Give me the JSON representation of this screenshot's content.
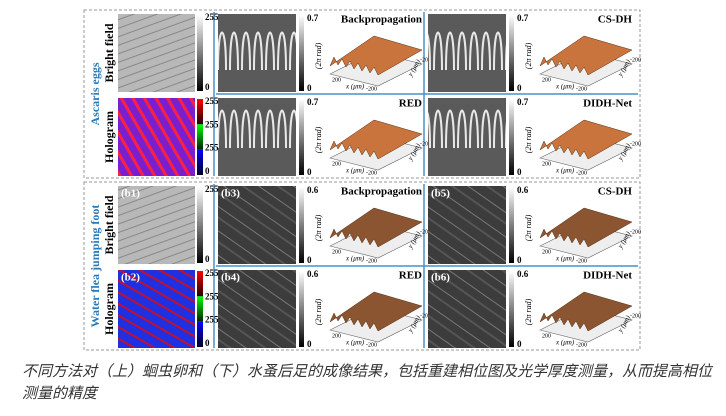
{
  "figure": {
    "groups": [
      {
        "label": "Ascaris eggs",
        "phase_max": 0.7,
        "phase_min": 0,
        "rows": [
          {
            "label": "Bright field",
            "colorbar": [
              255,
              0
            ],
            "methods": [
              {
                "title": "Backpropagation"
              },
              {
                "title": "CS-DH"
              }
            ]
          },
          {
            "label": "Hologram",
            "colorbar": [
              255,
              255,
              255,
              0
            ],
            "methods": [
              {
                "title": "RED"
              },
              {
                "title": "DIDH-Net"
              }
            ]
          }
        ]
      },
      {
        "label": "Water flea jumping foot",
        "phase_max": 0.6,
        "phase_min": 0,
        "rows": [
          {
            "label": "Bright field",
            "tag": "(b1)",
            "colorbar": [
              255,
              0
            ],
            "methods": [
              {
                "title": "Backpropagation",
                "tag": "(b3)"
              },
              {
                "title": "CS-DH",
                "tag": "(b5)"
              }
            ]
          },
          {
            "label": "Hologram",
            "tag": "(b2)",
            "colorbar": [
              255,
              255,
              255,
              0
            ],
            "methods": [
              {
                "title": "RED",
                "tag": "(b4)"
              },
              {
                "title": "DIDH-Net",
                "tag": "(b6)"
              }
            ]
          }
        ]
      }
    ],
    "surface_axes": {
      "unit": "(2π rad)",
      "x_label": "x (μm)",
      "y_label": "y (μm)",
      "ticks": [
        200,
        0,
        -200
      ]
    }
  },
  "caption": "不同方法对（上）蛔虫卵和（下）水蚤后足的成像结果，包括重建相位图及光学厚度测量，从而提高相位测量的精度"
}
